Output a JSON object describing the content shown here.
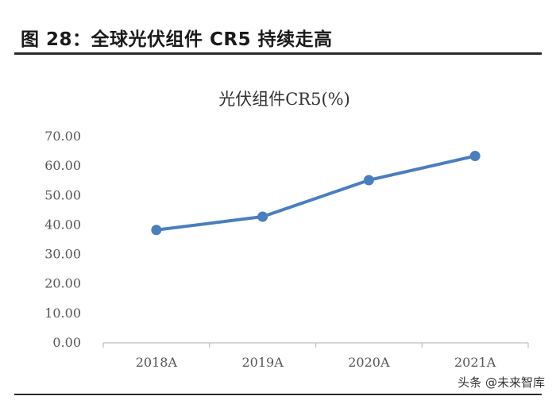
{
  "figure": {
    "title": "图 28：全球光伏组件 CR5 持续走高"
  },
  "watermark": "头条 @未来智库",
  "colors": {
    "line": "#4a7ebf",
    "axis": "#bfbfbf"
  },
  "chart_data": {
    "type": "line",
    "title": "光伏组件CR5(%)",
    "categories": [
      "2018A",
      "2019A",
      "2020A",
      "2021A"
    ],
    "series": [
      {
        "values": [
          38.3,
          42.8,
          55.2,
          63.4
        ]
      }
    ],
    "yticks": [
      "0.00",
      "10.00",
      "20.00",
      "30.00",
      "40.00",
      "50.00",
      "60.00",
      "70.00"
    ],
    "ylim": [
      0,
      70
    ],
    "grid": false,
    "legend": "none"
  }
}
